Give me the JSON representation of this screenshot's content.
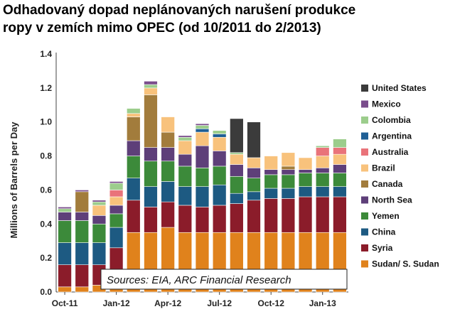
{
  "chart_data": {
    "type": "bar",
    "stacked": true,
    "title": "Odhadovaný dopad neplánovaných narušení produkce ropy v zemích mimo OPEC (od 10/2011 do 2/2013)",
    "title_lines": [
      "Odhadovaný dopad neplánovaných narušení produkce",
      "ropy v zemích mimo OPEC (od 10/2011 do 2/2013)"
    ],
    "ylabel": "Millions of Barrels per Day",
    "xlabel": "",
    "ylim": [
      0,
      1.4
    ],
    "yticks": [
      "0.0",
      "0.2",
      "0.4",
      "0.6",
      "0.8",
      "1.0",
      "1.2",
      "1.4"
    ],
    "xtick_labels": [
      "Oct-11",
      "Jan-12",
      "Apr-12",
      "Jul-12",
      "Oct-12",
      "Jan-13"
    ],
    "xtick_positions": [
      0,
      3,
      6,
      9,
      12,
      15
    ],
    "categories": [
      "Oct-11",
      "Nov-11",
      "Dec-11",
      "Jan-12",
      "Feb-12",
      "Mar-12",
      "Apr-12",
      "May-12",
      "Jun-12",
      "Jul-12",
      "Aug-12",
      "Sep-12",
      "Oct-12",
      "Nov-12",
      "Dec-12",
      "Jan-13",
      "Feb-13"
    ],
    "legend_position": "right",
    "annotation": "Sources: EIA, ARC Financial Research",
    "series": [
      {
        "name": "Sudan/ S. Sudan",
        "color": "#e0821c",
        "values": [
          0.03,
          0.03,
          0.04,
          0.05,
          0.35,
          0.35,
          0.38,
          0.35,
          0.35,
          0.35,
          0.35,
          0.35,
          0.35,
          0.35,
          0.35,
          0.35,
          0.35
        ]
      },
      {
        "name": "Syria",
        "color": "#8b1c2a",
        "values": [
          0.13,
          0.13,
          0.12,
          0.21,
          0.19,
          0.15,
          0.15,
          0.16,
          0.15,
          0.16,
          0.17,
          0.19,
          0.2,
          0.2,
          0.21,
          0.21,
          0.21
        ]
      },
      {
        "name": "China",
        "color": "#1d5a82",
        "values": [
          0.13,
          0.13,
          0.13,
          0.12,
          0.13,
          0.12,
          0.12,
          0.11,
          0.12,
          0.12,
          0.06,
          0.05,
          0.06,
          0.06,
          0.06,
          0.06,
          0.06
        ]
      },
      {
        "name": "Yemen",
        "color": "#3c8a3a",
        "values": [
          0.13,
          0.13,
          0.11,
          0.08,
          0.13,
          0.15,
          0.12,
          0.12,
          0.11,
          0.11,
          0.1,
          0.08,
          0.08,
          0.08,
          0.08,
          0.08,
          0.08
        ]
      },
      {
        "name": "North Sea",
        "color": "#5e3f79",
        "values": [
          0.05,
          0.05,
          0.05,
          0.05,
          0.09,
          0.08,
          0.08,
          0.07,
          0.13,
          0.09,
          0.07,
          0.06,
          0.03,
          0.03,
          0.02,
          0.03,
          0.05
        ]
      },
      {
        "name": "Canada",
        "color": "#a27c3c",
        "values": [
          0.0,
          0.12,
          0.0,
          0.0,
          0.14,
          0.31,
          0.09,
          0.0,
          0.0,
          0.0,
          0.0,
          0.0,
          0.0,
          0.02,
          0.0,
          0.0,
          0.0
        ]
      },
      {
        "name": "Brazil",
        "color": "#f8c27c",
        "values": [
          0.0,
          0.0,
          0.06,
          0.05,
          0.02,
          0.04,
          0.09,
          0.08,
          0.08,
          0.08,
          0.06,
          0.06,
          0.08,
          0.08,
          0.07,
          0.07,
          0.06
        ]
      },
      {
        "name": "Australia",
        "color": "#e9737a",
        "values": [
          0.0,
          0.0,
          0.0,
          0.04,
          0.0,
          0.0,
          0.0,
          0.0,
          0.0,
          0.0,
          0.0,
          0.0,
          0.0,
          0.0,
          0.0,
          0.05,
          0.04
        ]
      },
      {
        "name": "Argentina",
        "color": "#1f5f95",
        "values": [
          0.0,
          0.0,
          0.0,
          0.0,
          0.0,
          0.0,
          0.0,
          0.0,
          0.02,
          0.02,
          0.0,
          0.0,
          0.0,
          0.0,
          0.0,
          0.0,
          0.0
        ]
      },
      {
        "name": "Colombia",
        "color": "#9ccd8c",
        "values": [
          0.02,
          0.0,
          0.02,
          0.04,
          0.03,
          0.02,
          0.0,
          0.02,
          0.02,
          0.02,
          0.01,
          0.0,
          0.0,
          0.0,
          0.0,
          0.01,
          0.05
        ]
      },
      {
        "name": "Mexico",
        "color": "#7a4d8c",
        "values": [
          0.01,
          0.01,
          0.01,
          0.01,
          0.0,
          0.02,
          0.0,
          0.01,
          0.01,
          0.0,
          0.0,
          0.0,
          0.0,
          0.0,
          0.0,
          0.0,
          0.0
        ]
      },
      {
        "name": "United States",
        "color": "#3b3b3b",
        "values": [
          0.0,
          0.0,
          0.0,
          0.0,
          0.0,
          0.0,
          0.0,
          0.0,
          0.0,
          0.0,
          0.2,
          0.21,
          0.0,
          0.0,
          0.0,
          0.0,
          0.0
        ]
      }
    ]
  }
}
